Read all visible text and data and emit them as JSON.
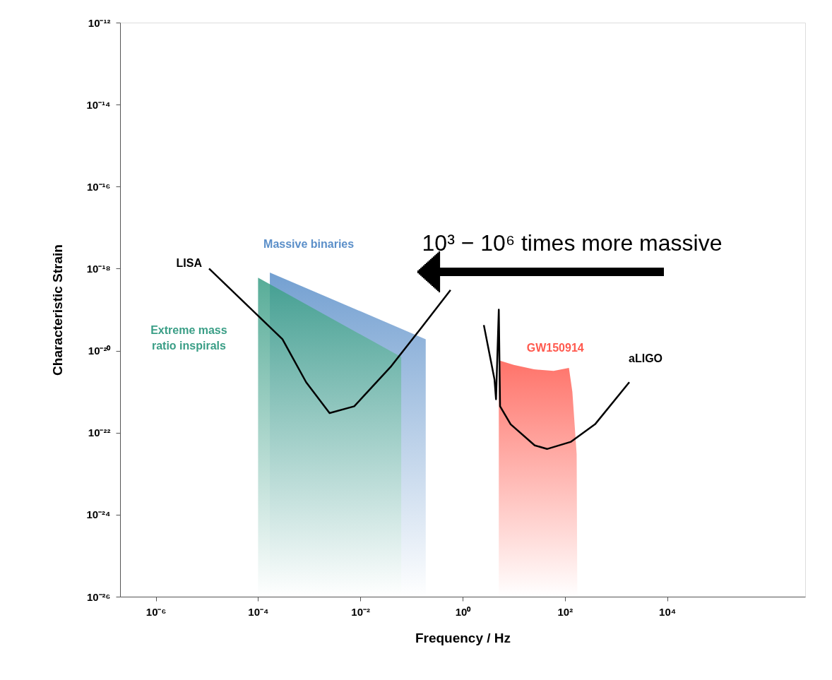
{
  "chart_data": {
    "type": "area",
    "xlabel": "Frequency / Hz",
    "ylabel": "Characteristic Strain",
    "log": "xy",
    "grid": false,
    "xlim": [
      2e-07,
      5000000.0
    ],
    "ylim": [
      1e-26,
      1e-12
    ],
    "xticks": [
      {
        "value": 1e-06,
        "label": "10⁻⁶"
      },
      {
        "value": 0.0001,
        "label": "10⁻⁴"
      },
      {
        "value": 0.01,
        "label": "10⁻²"
      },
      {
        "value": 1,
        "label": "10⁰"
      },
      {
        "value": 100,
        "label": "10²"
      },
      {
        "value": 10000,
        "label": "10⁴"
      }
    ],
    "yticks": [
      {
        "value": 1e-26,
        "label": "10⁻²⁶"
      },
      {
        "value": 1e-24,
        "label": "10⁻²⁴"
      },
      {
        "value": 1e-22,
        "label": "10⁻²²"
      },
      {
        "value": 1e-20,
        "label": "10⁻²⁰"
      },
      {
        "value": 1e-18,
        "label": "10⁻¹⁸"
      },
      {
        "value": 1e-16,
        "label": "10⁻¹⁶"
      },
      {
        "value": 1e-14,
        "label": "10⁻¹⁴"
      },
      {
        "value": 1e-12,
        "label": "10⁻¹²"
      }
    ],
    "series": [
      {
        "name": "Massive binaries",
        "color": "#5b8fc9",
        "x": [
          0.00017,
          0.19
        ],
        "values": [
          8e-19,
          1.9e-20
        ]
      },
      {
        "name": "Extreme mass\nratio inspirals",
        "color": "#3a9e86",
        "x": [
          0.0001,
          0.063
        ],
        "values": [
          6e-19,
          7e-21
        ]
      },
      {
        "name": "GW150914",
        "color": "#ff5a4f",
        "x": [
          5.1,
          10,
          25,
          60,
          120,
          140,
          170,
          175
        ],
        "values": [
          5.8e-21,
          4.5e-21,
          3.5e-21,
          3.2e-21,
          3.8e-21,
          1e-21,
          3e-23,
          1e-26
        ]
      },
      {
        "name": "LISA",
        "type": "line",
        "color": "#000000",
        "x": [
          1.1e-05,
          0.0003,
          0.00087,
          0.0025,
          0.0076,
          0.039,
          0.15,
          0.58
        ],
        "values": [
          1e-18,
          1.9e-20,
          1.7e-21,
          3e-22,
          4.4e-22,
          4e-21,
          3.4e-20,
          3e-19
        ]
      },
      {
        "name": "aLIGO",
        "type": "line",
        "color": "#000000",
        "x": [
          2.6,
          4.2,
          4.5,
          5.1,
          5.4,
          8.7,
          25.7,
          44.7,
          132,
          389,
          1820
        ],
        "values": [
          4.2e-20,
          2e-21,
          6.5e-22,
          1e-19,
          4.4e-22,
          1.6e-22,
          4.9e-23,
          4e-23,
          6e-23,
          1.6e-22,
          1.7e-21
        ]
      }
    ],
    "annotations": [
      "10³ − 10⁶ times more massive"
    ]
  }
}
